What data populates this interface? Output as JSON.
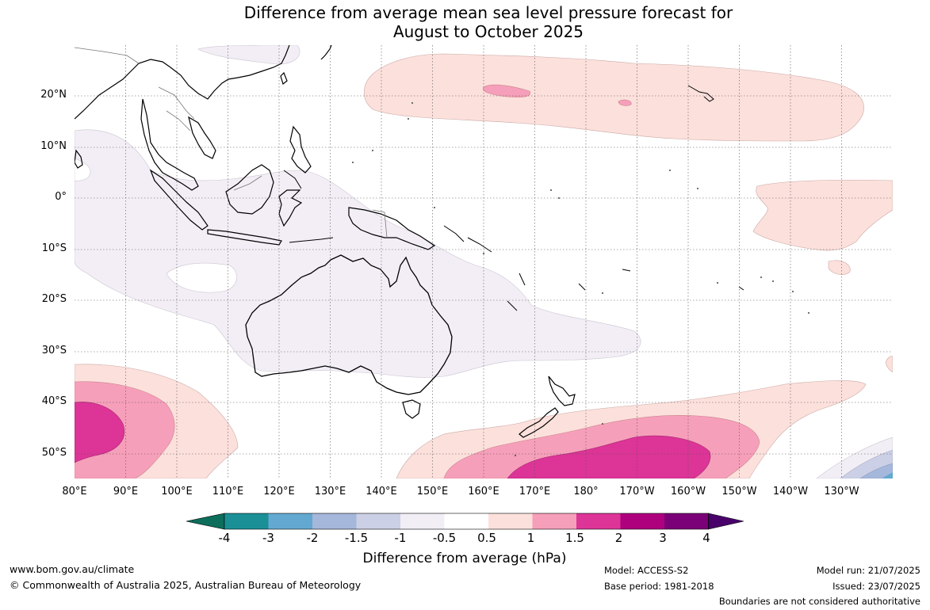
{
  "title_line1": "Difference from average mean sea level pressure forecast for",
  "title_line2": "August to October 2025",
  "lat_labels": [
    "20°N",
    "10°N",
    "0°",
    "10°S",
    "20°S",
    "30°S",
    "40°S",
    "50°S"
  ],
  "lon_labels": [
    "80°E",
    "90°E",
    "100°E",
    "110°E",
    "120°E",
    "130°E",
    "140°E",
    "150°E",
    "160°E",
    "170°E",
    "180°",
    "170°W",
    "160°W",
    "150°W",
    "140°W",
    "130°W"
  ],
  "colorbar": {
    "title": "Difference from average (hPa)",
    "ticks": [
      "-4",
      "-3",
      "-2",
      "-1.5",
      "-1",
      "-0.5",
      "0.5",
      "1",
      "1.5",
      "2",
      "3",
      "4"
    ],
    "colors": [
      "#0d6e5c",
      "#1a9096",
      "#63a8d0",
      "#a5b7db",
      "#ccd0e6",
      "#f1eef6",
      "#ffffff",
      "#fce0dc",
      "#f69fba",
      "#dd3497",
      "#ae017e",
      "#7a0177",
      "#49006a"
    ]
  },
  "footer": {
    "website": "www.bom.gov.au/climate",
    "copyright": "© Commonwealth of Australia 2025, Australian Bureau of Meteorology",
    "model": "Model: ACCESS-S2",
    "base_period": "Base period: 1981-2018",
    "model_run": "Model run: 21/07/2025",
    "issued": "Issued: 23/07/2025",
    "disclaimer": "Boundaries are not considered authoritative"
  }
}
